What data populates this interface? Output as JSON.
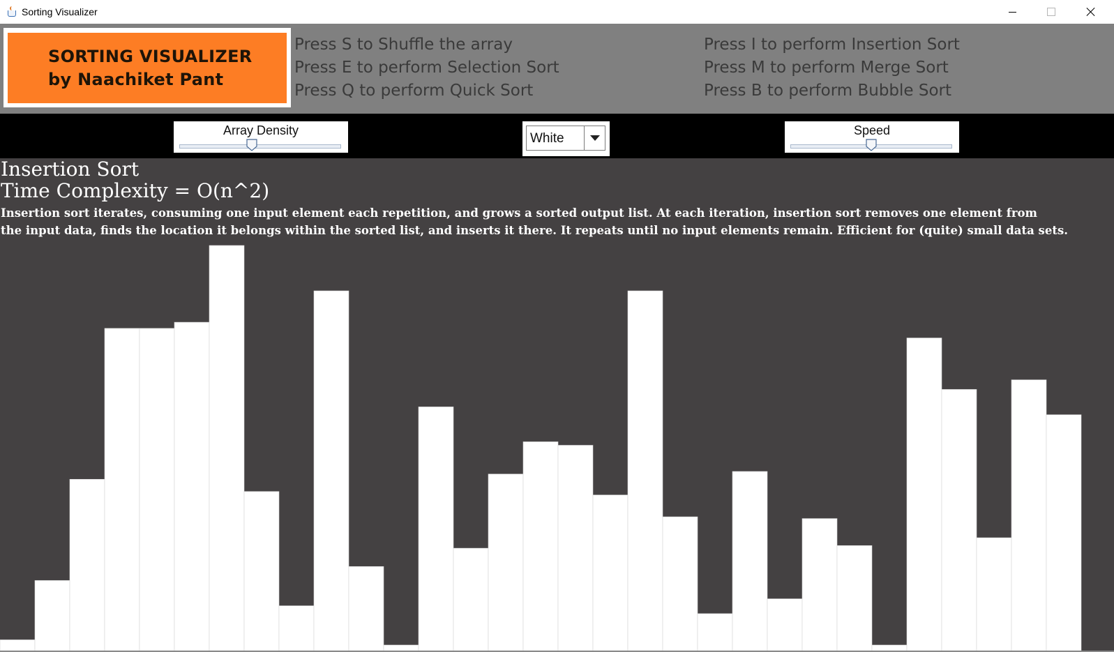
{
  "window": {
    "title": "Sorting Visualizer",
    "icon": "java-cup-icon"
  },
  "header": {
    "logo_line1": "SORTING VISUALIZER",
    "logo_line2": "by Naachiket Pant",
    "logo_color": "#fd7d24",
    "hints_left": [
      "Press S to Shuffle the array",
      "Press E to perform Selection Sort",
      "Press Q to perform Quick Sort"
    ],
    "hints_right": [
      "Press I to perform Insertion Sort",
      "Press M to perform Merge Sort",
      "Press B to perform Bubble Sort"
    ]
  },
  "controls": {
    "density_label": "Array Density",
    "density_value": 0.45,
    "color_selected": "White",
    "speed_label": "Speed",
    "speed_value": 0.5
  },
  "info": {
    "algorithm": "Insertion Sort",
    "complexity": "Time Complexity = O(n^2)",
    "description_line1": "Insertion sort iterates, consuming one input element each repetition, and grows a sorted output list. At each iteration, insertion sort removes one element from",
    "description_line2": "the input data, finds the location it belongs within the sorted list, and inserts it there. It repeats until no input elements remain. Efficient for (quite) small data sets."
  },
  "array": {
    "bar_color": "#ffffff",
    "background": "#444142",
    "values": [
      6,
      74,
      190,
      363,
      363,
      370,
      458,
      176,
      45,
      406,
      90,
      0,
      273,
      111,
      196,
      233,
      229,
      172,
      406,
      147,
      36,
      199,
      53,
      145,
      114,
      0,
      352,
      293,
      123,
      304,
      264
    ]
  }
}
